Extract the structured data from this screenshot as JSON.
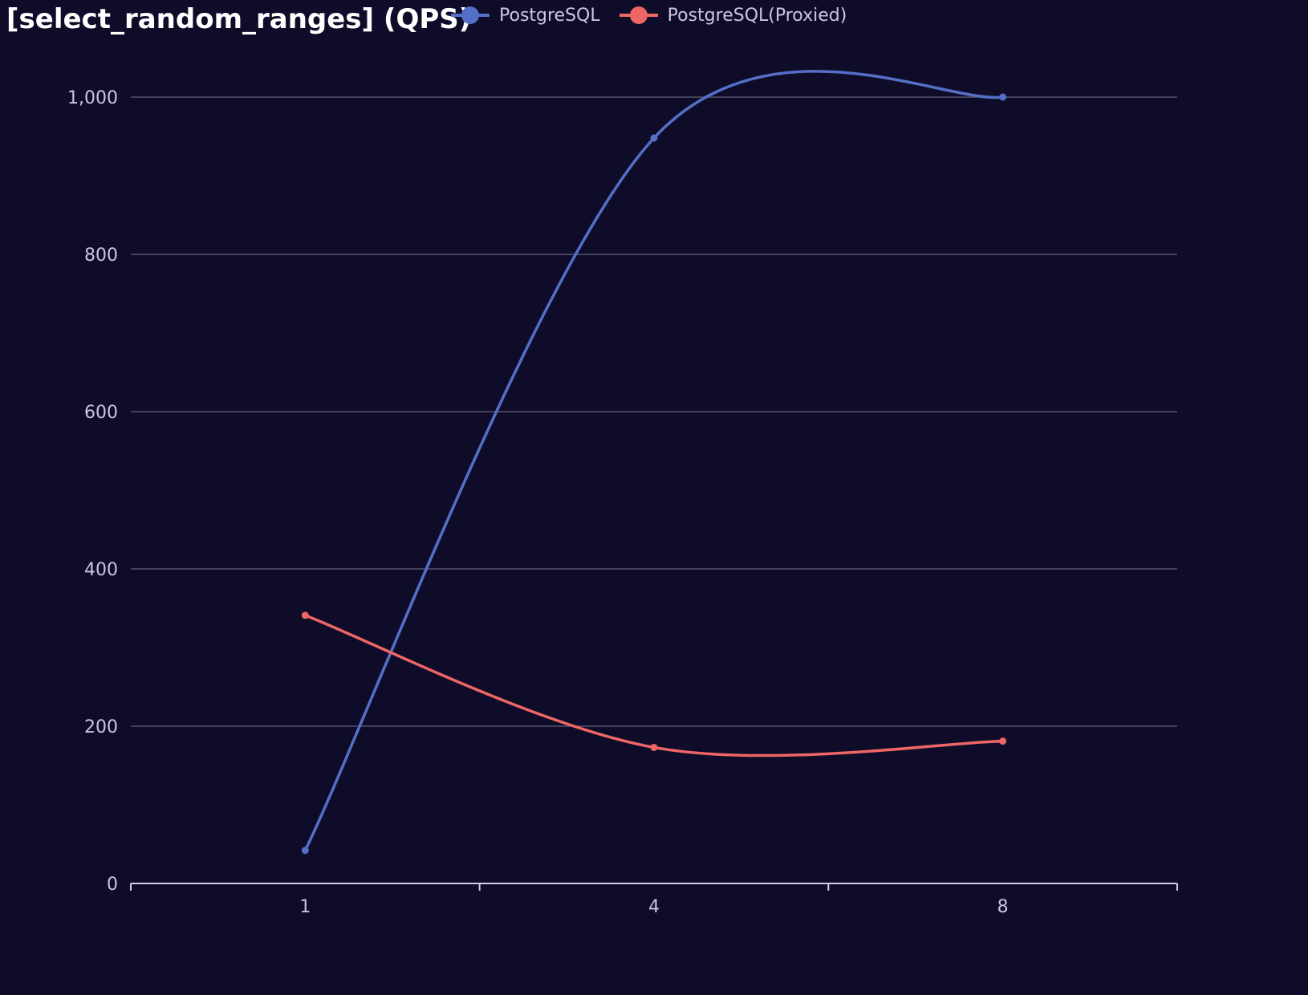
{
  "chart_data": {
    "type": "line",
    "title": "[select_random_ranges] (QPS)",
    "xlabel": "",
    "ylabel": "",
    "categories": [
      "1",
      "4",
      "8"
    ],
    "ylim": [
      0,
      1000
    ],
    "yticks": [
      0,
      200,
      400,
      600,
      800,
      1000
    ],
    "ytick_labels": [
      "0",
      "200",
      "400",
      "600",
      "800",
      "1,000"
    ],
    "grid": true,
    "legend": "top",
    "smooth": true,
    "series": [
      {
        "name": "PostgreSQL",
        "color": "#5470c6",
        "values": [
          42,
          948,
          1000
        ]
      },
      {
        "name": "PostgreSQL(Proxied)",
        "color": "#ee6666",
        "values": [
          341,
          173,
          181
        ]
      }
    ]
  }
}
